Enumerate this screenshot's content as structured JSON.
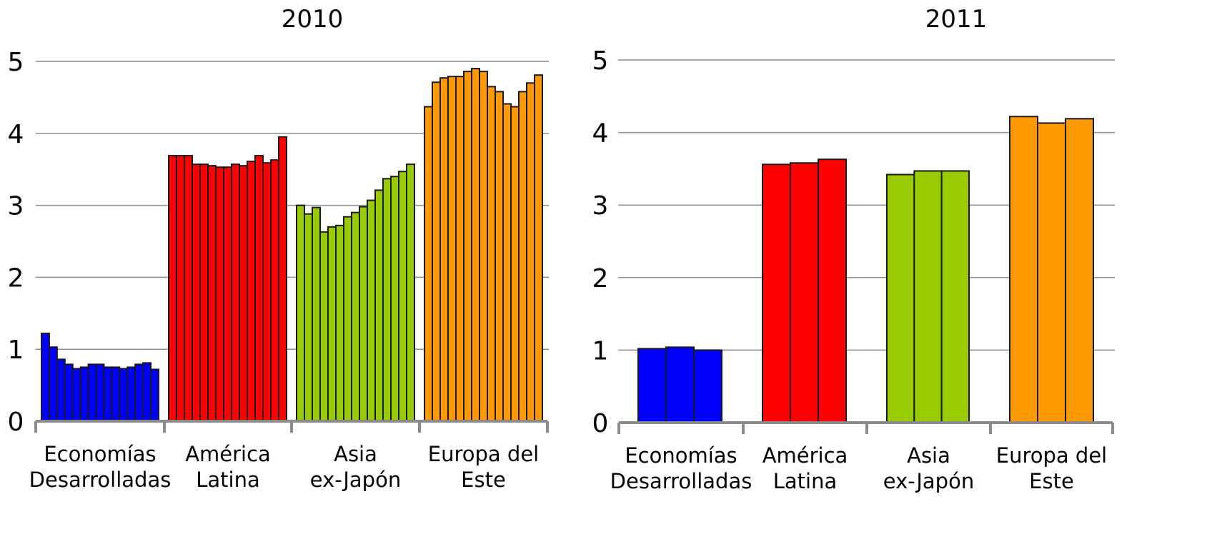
{
  "chart_data": [
    {
      "type": "bar",
      "title": "2010",
      "xlabel": "",
      "ylabel": "",
      "ylim": [
        0,
        5
      ],
      "yticks": [
        "0",
        "1",
        "2",
        "3",
        "4",
        "5"
      ],
      "grid": true,
      "groups": [
        {
          "label": [
            "Economías",
            "Desarrolladas"
          ],
          "color": "#0000ff",
          "values": [
            1.22,
            1.03,
            0.86,
            0.79,
            0.73,
            0.75,
            0.79,
            0.79,
            0.75,
            0.75,
            0.73,
            0.75,
            0.79,
            0.81,
            0.72
          ]
        },
        {
          "label": [
            "América",
            "Latina"
          ],
          "color": "#ff0000",
          "values": [
            3.69,
            3.69,
            3.69,
            3.57,
            3.57,
            3.55,
            3.53,
            3.53,
            3.57,
            3.55,
            3.61,
            3.69,
            3.59,
            3.63,
            3.95
          ]
        },
        {
          "label": [
            "Asia",
            "ex-Japón"
          ],
          "color": "#99cc00",
          "values": [
            3.0,
            2.88,
            2.97,
            2.63,
            2.7,
            2.72,
            2.84,
            2.9,
            2.98,
            3.07,
            3.21,
            3.37,
            3.4,
            3.47,
            3.57
          ]
        },
        {
          "label": [
            "Europa del",
            "Este"
          ],
          "color": "#ff9900",
          "values": [
            4.37,
            4.71,
            4.77,
            4.79,
            4.79,
            4.86,
            4.9,
            4.86,
            4.65,
            4.58,
            4.41,
            4.37,
            4.58,
            4.7,
            4.81
          ]
        }
      ]
    },
    {
      "type": "bar",
      "title": "2011",
      "xlabel": "",
      "ylabel": "",
      "ylim": [
        0,
        5
      ],
      "yticks": [
        "0",
        "1",
        "2",
        "3",
        "4",
        "5"
      ],
      "grid": true,
      "groups": [
        {
          "label": [
            "Economías",
            "Desarrolladas"
          ],
          "color": "#0000ff",
          "values": [
            1.02,
            1.04,
            1.0
          ]
        },
        {
          "label": [
            "América",
            "Latina"
          ],
          "color": "#ff0000",
          "values": [
            3.56,
            3.58,
            3.63
          ]
        },
        {
          "label": [
            "Asia",
            "ex-Japón"
          ],
          "color": "#99cc00",
          "values": [
            3.42,
            3.47,
            3.47
          ]
        },
        {
          "label": [
            "Europa del",
            "Este"
          ],
          "color": "#ff9900",
          "values": [
            4.22,
            4.13,
            4.19
          ]
        }
      ]
    }
  ]
}
